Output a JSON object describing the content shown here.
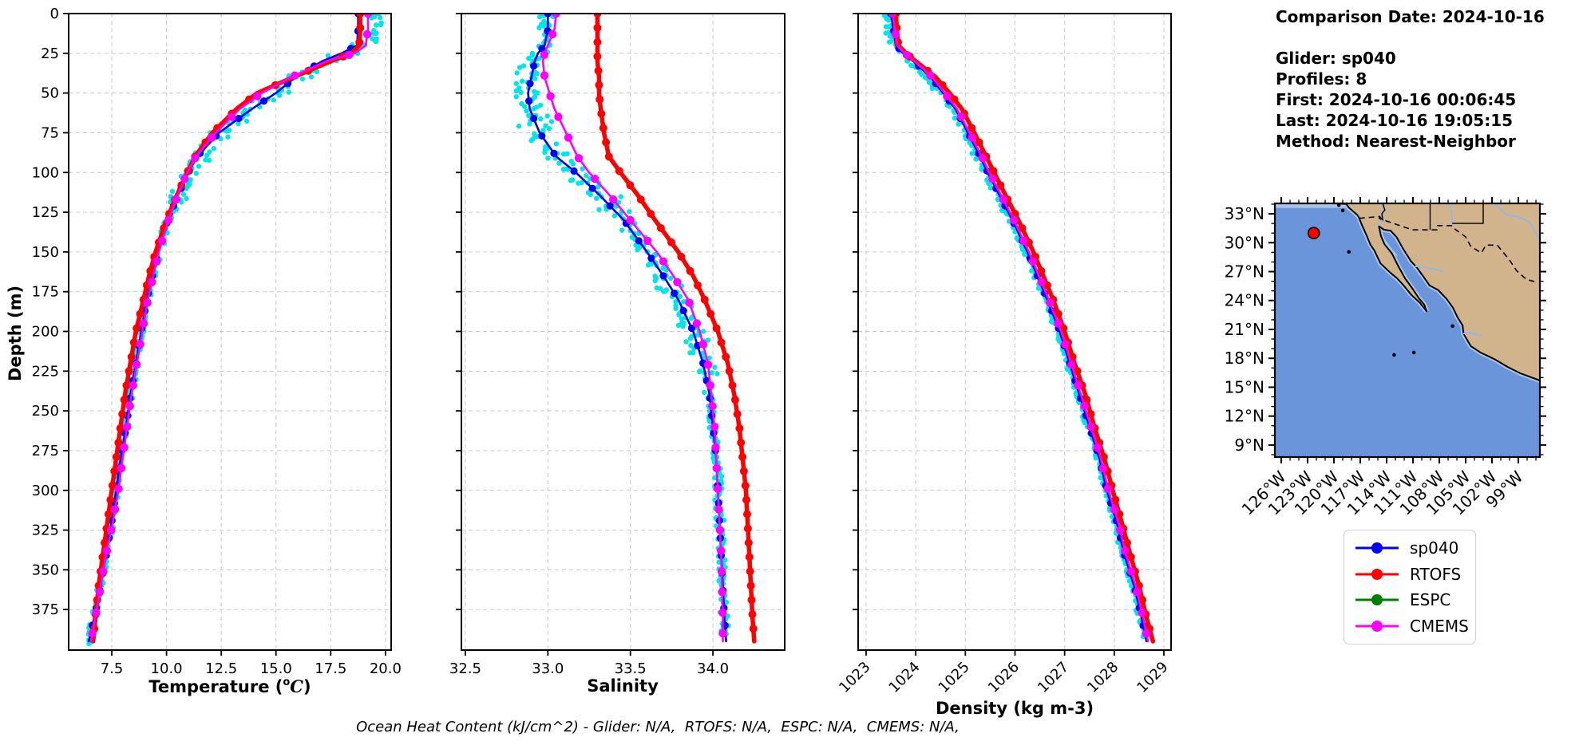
{
  "info_panel": {
    "comparison_date": "Comparison Date: 2024-10-16",
    "glider": "Glider: sp040",
    "profiles": "Profiles: 8",
    "first": "First: 2024-10-16 00:06:45",
    "last": "Last: 2024-10-16 19:05:15",
    "method": "Method: Nearest-Neighbor"
  },
  "footer": {
    "ohc_note": "Ocean Heat Content (kJ/cm^2) - Glider: N/A,  RTOFS: N/A,  ESPC: N/A,  CMEMS: N/A,"
  },
  "legend": {
    "entries": [
      {
        "label": "sp040",
        "color": "#0000FF"
      },
      {
        "label": "RTOFS",
        "color": "#FF0000"
      },
      {
        "label": "ESPC",
        "color": "#008000"
      },
      {
        "label": "CMEMS",
        "color": "#FF00FF"
      }
    ]
  },
  "chart_data": {
    "type": "line",
    "description": "Glider vs model vertical profiles of temperature, salinity and density",
    "depth_axis": {
      "label": "Depth (m)",
      "domain": [
        0,
        400.5
      ],
      "ticks": [
        0,
        25,
        50,
        75,
        100,
        125,
        150,
        175,
        200,
        225,
        250,
        275,
        300,
        325,
        350,
        375
      ]
    },
    "depths": [
      0,
      10,
      20,
      25,
      30,
      40,
      50,
      60,
      75,
      90,
      100,
      115,
      130,
      150,
      165,
      180,
      200,
      220,
      240,
      260,
      280,
      300,
      320,
      340,
      360,
      380,
      395
    ],
    "scatter_color": "#00E5E5",
    "scatter_name": "glider raw observations",
    "panels": [
      {
        "id": "temperature",
        "xlabel_prefix": "Temperature (",
        "xlabel_sup": "o",
        "xlabel_var": "C",
        "xlabel_suffix": ")",
        "xdomain": [
          5.53,
          20.26
        ],
        "xtick_values": [
          7.5,
          10.0,
          12.5,
          15.0,
          17.5,
          20.0
        ],
        "xtick_labels": [
          "7.5",
          "10.0",
          "12.5",
          "15.0",
          "17.5",
          "20.0"
        ],
        "rotate_xticks": false,
        "series": [
          {
            "name": "sp040",
            "color": "#0000EE",
            "values": [
              18.75,
              18.75,
              18.7,
              18.0,
              17.1,
              15.9,
              15.0,
              13.9,
              12.4,
              11.4,
              11.0,
              10.5,
              10.05,
              9.6,
              9.35,
              9.1,
              8.85,
              8.6,
              8.35,
              8.15,
              7.9,
              7.7,
              7.5,
              7.25,
              7.0,
              6.7,
              6.45
            ]
          },
          {
            "name": "RTOFS",
            "color": "#FF0000",
            "values": [
              18.85,
              18.85,
              18.8,
              18.45,
              17.5,
              15.8,
              14.15,
              13.2,
              12.1,
              11.3,
              10.95,
              10.45,
              10.0,
              9.5,
              9.2,
              8.95,
              8.6,
              8.35,
              8.1,
              7.9,
              7.7,
              7.5,
              7.3,
              7.1,
              6.9,
              6.75,
              6.65
            ]
          },
          {
            "name": "CMEMS",
            "color": "#FF00FF",
            "values": [
              19.2,
              19.2,
              19.1,
              18.6,
              17.3,
              15.7,
              14.35,
              13.35,
              12.25,
              11.35,
              10.95,
              10.5,
              10.1,
              9.65,
              9.4,
              9.15,
              8.9,
              8.65,
              8.4,
              8.2,
              8.0,
              7.8,
              7.55,
              7.25,
              7.0,
              6.75,
              6.55
            ]
          }
        ],
        "scatter_zones": [
          [
            20,
            0.78,
            0.3
          ],
          [
            60,
            0.15,
            0.7
          ],
          [
            125,
            0.08,
            0.55
          ],
          [
            260,
            0.0,
            0.22
          ],
          [
            401,
            -0.02,
            0.15
          ]
        ],
        "scatter_step": 3.5,
        "scatter_per": 3,
        "scatter_max_depth": 396
      },
      {
        "id": "salinity",
        "xlabel": "Salinity",
        "xdomain": [
          32.476,
          34.435
        ],
        "xtick_values": [
          32.5,
          33.0,
          33.5,
          34.0
        ],
        "xtick_labels": [
          "32.5",
          "33.0",
          "33.5",
          "34.0"
        ],
        "rotate_xticks": false,
        "series": [
          {
            "name": "sp040",
            "color": "#0000EE",
            "values": [
              33.0,
              33.0,
              32.98,
              32.94,
              32.92,
              32.9,
              32.88,
              32.89,
              32.95,
              33.05,
              33.17,
              33.32,
              33.46,
              33.6,
              33.7,
              33.79,
              33.88,
              33.94,
              33.98,
              34.0,
              34.02,
              34.03,
              34.04,
              34.05,
              34.06,
              34.07,
              34.08
            ]
          },
          {
            "name": "RTOFS",
            "color": "#FF0000",
            "values": [
              33.3,
              33.3,
              33.3,
              33.3,
              33.3,
              33.31,
              33.31,
              33.32,
              33.34,
              33.37,
              33.44,
              33.55,
              33.65,
              33.79,
              33.88,
              33.95,
              34.03,
              34.09,
              34.13,
              34.16,
              34.18,
              34.2,
              34.21,
              34.22,
              34.23,
              34.24,
              34.25
            ]
          },
          {
            "name": "CMEMS",
            "color": "#FF00FF",
            "values": [
              33.05,
              33.04,
              33.0,
              32.98,
              32.97,
              32.98,
              33.01,
              33.04,
              33.11,
              33.18,
              33.25,
              33.38,
              33.5,
              33.66,
              33.76,
              33.85,
              33.92,
              33.97,
              33.99,
              34.01,
              34.02,
              34.03,
              34.04,
              34.05,
              34.055,
              34.06,
              34.06
            ]
          }
        ],
        "scatter_zones": [
          [
            20,
            0.0,
            0.06
          ],
          [
            60,
            -0.02,
            0.1
          ],
          [
            130,
            0.0,
            0.12
          ],
          [
            230,
            0.0,
            0.09
          ],
          [
            401,
            0.0,
            0.03
          ]
        ],
        "scatter_step": 3.0,
        "scatter_per": 3,
        "scatter_max_depth": 392
      },
      {
        "id": "density",
        "xlabel": "Density (kg m-3)",
        "xdomain": [
          1022.84,
          1029.145
        ],
        "xtick_values": [
          1023,
          1024,
          1025,
          1026,
          1027,
          1028,
          1029
        ],
        "xtick_labels": [
          "1023",
          "1024",
          "1025",
          "1026",
          "1027",
          "1028",
          "1029"
        ],
        "rotate_xticks": true,
        "series": [
          {
            "name": "sp040",
            "color": "#0000EE",
            "values": [
              1023.5,
              1023.55,
              1023.6,
              1023.75,
              1023.95,
              1024.3,
              1024.55,
              1024.8,
              1025.05,
              1025.3,
              1025.45,
              1025.7,
              1025.95,
              1026.25,
              1026.45,
              1026.65,
              1026.9,
              1027.1,
              1027.3,
              1027.5,
              1027.7,
              1027.85,
              1028.05,
              1028.2,
              1028.4,
              1028.55,
              1028.65
            ]
          },
          {
            "name": "RTOFS",
            "color": "#FF0000",
            "values": [
              1023.6,
              1023.62,
              1023.65,
              1023.8,
              1024.0,
              1024.4,
              1024.68,
              1024.93,
              1025.18,
              1025.42,
              1025.58,
              1025.82,
              1026.07,
              1026.37,
              1026.57,
              1026.77,
              1027.0,
              1027.2,
              1027.42,
              1027.6,
              1027.8,
              1027.97,
              1028.15,
              1028.32,
              1028.5,
              1028.65,
              1028.78
            ]
          },
          {
            "name": "CMEMS",
            "color": "#FF00FF",
            "values": [
              1023.53,
              1023.58,
              1023.63,
              1023.78,
              1023.98,
              1024.33,
              1024.58,
              1024.83,
              1025.08,
              1025.33,
              1025.48,
              1025.73,
              1025.98,
              1026.28,
              1026.48,
              1026.68,
              1026.93,
              1027.13,
              1027.33,
              1027.53,
              1027.73,
              1027.88,
              1028.08,
              1028.23,
              1028.43,
              1028.58,
              1028.68
            ]
          }
        ],
        "scatter_zones": [
          [
            20,
            -0.1,
            0.08
          ],
          [
            120,
            -0.05,
            0.1
          ],
          [
            401,
            -0.03,
            0.06
          ]
        ],
        "scatter_step": 3.5,
        "scatter_per": 3,
        "scatter_max_depth": 394
      }
    ]
  },
  "map": {
    "lat_ticks": [
      33,
      30,
      27,
      24,
      21,
      18,
      15,
      12,
      9
    ],
    "lat_labels": [
      "33°N",
      "30°N",
      "27°N",
      "24°N",
      "21°N",
      "18°N",
      "15°N",
      "12°N",
      "9°N"
    ],
    "lon_ticks": [
      126,
      123,
      120,
      117,
      114,
      111,
      108,
      105,
      102,
      99
    ],
    "lon_labels": [
      "126°W",
      "123°W",
      "120°W",
      "117°W",
      "114°W",
      "111°W",
      "108°W",
      "105°W",
      "102°W",
      "99°W"
    ],
    "domain": {
      "lon": [
        126.73,
        96.55
      ],
      "lat": [
        34.08,
        7.75
      ]
    },
    "colors": {
      "ocean": "#6B95DB",
      "land": "#D2B48C",
      "shelf": "#A9C6E6",
      "river": "#8FB8E8",
      "marker": "#FF0000"
    },
    "marker": {
      "lon": 122.3,
      "lat": 31.0
    },
    "coast": [
      [
        119.8,
        34.08
      ],
      [
        118.6,
        34.02
      ],
      [
        118.3,
        33.65
      ],
      [
        117.3,
        32.85
      ],
      [
        117.12,
        32.53
      ],
      [
        116.85,
        31.9
      ],
      [
        116.3,
        30.8
      ],
      [
        115.85,
        29.8
      ],
      [
        115.4,
        29.2
      ],
      [
        114.7,
        27.85
      ],
      [
        113.6,
        26.9
      ],
      [
        112.8,
        26.3
      ],
      [
        112.1,
        25.6
      ],
      [
        111.2,
        24.6
      ],
      [
        110.2,
        23.75
      ],
      [
        109.45,
        22.88
      ],
      [
        109.7,
        23.55
      ],
      [
        110.35,
        24.25
      ],
      [
        110.95,
        25.1
      ],
      [
        111.9,
        26.3
      ],
      [
        112.75,
        27.7
      ],
      [
        113.4,
        28.9
      ],
      [
        114.25,
        29.85
      ],
      [
        114.65,
        30.7
      ],
      [
        114.88,
        31.7
      ],
      [
        114.3,
        31.35
      ],
      [
        113.55,
        31.25
      ],
      [
        112.85,
        30.55
      ],
      [
        112.15,
        29.4
      ],
      [
        111.25,
        28.1
      ],
      [
        110.5,
        27.35
      ],
      [
        109.75,
        26.4
      ],
      [
        109.1,
        25.55
      ],
      [
        108.15,
        25.1
      ],
      [
        107.2,
        24.2
      ],
      [
        106.45,
        23.25
      ],
      [
        105.95,
        22.3
      ],
      [
        105.35,
        21.4
      ],
      [
        105.25,
        20.55
      ],
      [
        104.4,
        19.25
      ],
      [
        103.3,
        18.6
      ],
      [
        101.8,
        17.95
      ],
      [
        100.2,
        17.1
      ],
      [
        98.8,
        16.45
      ],
      [
        96.55,
        15.7
      ],
      [
        96.55,
        34.08
      ]
    ],
    "border": [
      [
        117.12,
        32.53
      ],
      [
        114.81,
        32.72
      ],
      [
        114.81,
        32.5
      ],
      [
        111.07,
        31.33
      ],
      [
        108.21,
        31.33
      ],
      [
        108.21,
        31.78
      ],
      [
        106.53,
        31.78
      ],
      [
        106.2,
        31.4
      ],
      [
        105.0,
        30.6
      ],
      [
        104.4,
        29.6
      ],
      [
        103.2,
        28.95
      ],
      [
        102.7,
        29.75
      ],
      [
        101.4,
        29.75
      ],
      [
        100.0,
        28.2
      ],
      [
        99.2,
        27.1
      ],
      [
        98.1,
        26.2
      ],
      [
        96.9,
        25.9
      ]
    ],
    "state_lines": [
      [
        [
          114.45,
          34.08
        ],
        [
          114.2,
          33.4
        ],
        [
          114.55,
          33.0
        ],
        [
          114.45,
          32.4
        ],
        [
          114.81,
          32.72
        ]
      ],
      [
        [
          109.05,
          34.08
        ],
        [
          109.05,
          31.33
        ]
      ],
      [
        [
          103.0,
          34.08
        ],
        [
          103.0,
          32.0
        ],
        [
          106.53,
          32.0
        ]
      ]
    ],
    "rivers": [
      [
        [
          114.55,
          34.08
        ],
        [
          114.3,
          33.4
        ],
        [
          114.65,
          33.0
        ],
        [
          114.55,
          32.4
        ],
        [
          114.95,
          31.78
        ]
      ],
      [
        [
          106.75,
          34.08
        ],
        [
          106.6,
          33.0
        ],
        [
          106.5,
          31.9
        ]
      ],
      [
        [
          107.5,
          27.0
        ],
        [
          109.3,
          27.4
        ],
        [
          110.8,
          27.55
        ]
      ],
      [
        [
          103.2,
          20.3
        ],
        [
          104.6,
          20.7
        ],
        [
          105.3,
          20.55
        ]
      ],
      [
        [
          101.8,
          34.08
        ],
        [
          100.3,
          32.9
        ],
        [
          99.0,
          32.7
        ],
        [
          97.8,
          32.2
        ],
        [
          97.0,
          31.0
        ],
        [
          96.6,
          30.4
        ]
      ]
    ],
    "islands": [
      [
        119.45,
        33.9
      ],
      [
        119.0,
        33.35
      ],
      [
        118.3,
        29.05
      ],
      [
        113.15,
        18.35
      ],
      [
        110.9,
        18.6
      ],
      [
        106.5,
        21.35
      ]
    ],
    "shelf_patches": [
      [
        [
          126.7,
          34.08
        ],
        [
          118.0,
          34.08
        ],
        [
          118.0,
          33.62
        ],
        [
          126.7,
          33.62
        ]
      ],
      [
        [
          114.88,
          31.78
        ],
        [
          114.4,
          30.6
        ],
        [
          113.6,
          29.6
        ],
        [
          112.7,
          28.6
        ],
        [
          113.5,
          28.9
        ],
        [
          114.3,
          30.0
        ],
        [
          114.8,
          30.9
        ]
      ]
    ]
  }
}
